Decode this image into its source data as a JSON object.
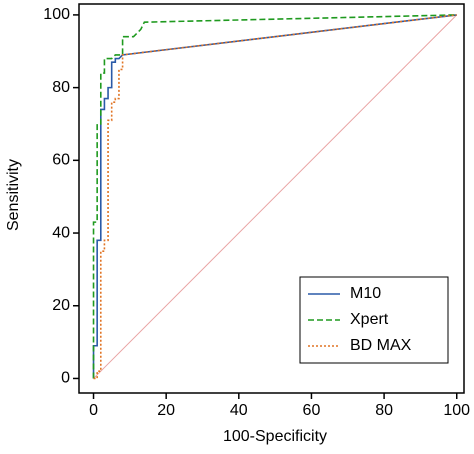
{
  "chart_data": {
    "type": "line",
    "x_label": "100-Specificity",
    "y_label": "Sensitivity",
    "xlim": [
      -4,
      102
    ],
    "ylim": [
      -4,
      103
    ],
    "xticks": [
      0,
      20,
      40,
      60,
      80,
      100
    ],
    "yticks": [
      0,
      20,
      40,
      60,
      80,
      100
    ],
    "legend": "lower right",
    "reference_line": {
      "x": [
        0,
        100
      ],
      "y": [
        0,
        100
      ],
      "color": "#e9a3a3"
    },
    "series": [
      {
        "name": "M10",
        "color": "#2a5aa8",
        "dash": "solid",
        "x": [
          0,
          0,
          1,
          1,
          2,
          2,
          2,
          3,
          3,
          4,
          4,
          5,
          5,
          6,
          6,
          7,
          8,
          100
        ],
        "values": [
          0,
          9,
          9,
          38,
          38,
          65,
          74,
          74,
          77,
          77,
          80,
          80,
          87,
          87,
          88,
          88,
          89,
          100
        ]
      },
      {
        "name": "Xpert",
        "color": "#1f9a1f",
        "dash": "dashed",
        "x": [
          0,
          0,
          0,
          1,
          1,
          2,
          2,
          3,
          3,
          5,
          6,
          8,
          8,
          11,
          13,
          14,
          100
        ],
        "values": [
          0,
          38,
          43,
          43,
          70,
          70,
          84,
          84,
          88,
          88,
          89,
          89,
          94,
          94,
          96,
          98,
          100
        ]
      },
      {
        "name": "BD MAX",
        "color": "#e07424",
        "dash": "dotted",
        "x": [
          0,
          1,
          1,
          2,
          2,
          3,
          3,
          4,
          4,
          5,
          5,
          6,
          6,
          7,
          7,
          8,
          8,
          100
        ],
        "values": [
          0,
          0,
          2,
          2,
          35,
          35,
          38,
          38,
          71,
          71,
          76,
          76,
          77,
          77,
          85,
          85,
          89,
          100
        ]
      }
    ]
  }
}
